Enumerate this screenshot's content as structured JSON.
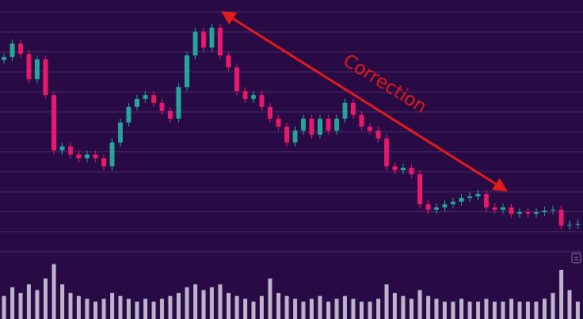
{
  "chart_data": {
    "type": "candlestick",
    "annotation": "Correction",
    "up_color": "#26a69a",
    "down_color": "#e8196b",
    "volume_color": "#d9d2e6",
    "grid": true,
    "ylim": [
      0,
      12.6
    ],
    "yticks": [
      0,
      1,
      2,
      3,
      4,
      5,
      6,
      7,
      8,
      9,
      10,
      11,
      12
    ],
    "volume_ylim": [
      0,
      100
    ],
    "open": [
      9.6,
      9.75,
      10.42,
      9.9,
      8.64,
      9.63,
      7.84,
      5.07,
      5.27,
      4.87,
      4.68,
      4.87,
      4.68,
      4.28,
      5.47,
      6.46,
      7.25,
      7.65,
      7.84,
      7.45,
      7.05,
      6.66,
      8.24,
      9.83,
      11.01,
      10.22,
      11.21,
      9.83,
      9.23,
      8.04,
      7.65,
      7.84,
      7.25,
      6.66,
      6.26,
      5.47,
      6.06,
      6.66,
      5.86,
      6.66,
      6.06,
      6.66,
      7.45,
      6.85,
      6.26,
      6.06,
      5.67,
      4.28,
      4.08,
      4.2,
      3.88,
      2.38,
      2.1,
      2.22,
      2.38,
      2.5,
      2.69,
      2.77,
      2.89,
      2.22,
      2.1,
      2.22,
      1.9,
      1.98,
      1.9,
      1.98,
      2.06,
      2.1,
      1.31,
      1.35
    ],
    "high": [
      9.95,
      10.62,
      10.62,
      10.1,
      9.83,
      9.83,
      8.04,
      5.47,
      5.47,
      5.07,
      5.07,
      5.07,
      4.88,
      5.67,
      6.66,
      7.45,
      7.85,
      8.04,
      8.04,
      7.65,
      7.25,
      8.44,
      10.03,
      11.21,
      11.21,
      11.41,
      11.41,
      10.03,
      9.43,
      8.24,
      8.04,
      8.04,
      7.45,
      6.86,
      6.46,
      6.26,
      6.86,
      6.86,
      6.86,
      6.86,
      6.86,
      7.65,
      7.65,
      7.05,
      6.46,
      6.26,
      5.87,
      4.48,
      4.4,
      4.4,
      4.08,
      2.58,
      2.42,
      2.58,
      2.7,
      2.89,
      2.97,
      3.09,
      3.09,
      2.42,
      2.42,
      2.42,
      2.18,
      2.18,
      2.18,
      2.26,
      2.3,
      2.3,
      1.55,
      1.59
    ],
    "low": [
      9.4,
      9.55,
      9.7,
      8.44,
      8.44,
      7.64,
      4.87,
      4.87,
      4.67,
      4.48,
      4.48,
      4.48,
      4.08,
      4.08,
      5.27,
      6.26,
      7.05,
      7.45,
      7.25,
      6.85,
      6.46,
      6.46,
      8.04,
      9.63,
      10.02,
      10.02,
      9.63,
      9.03,
      7.84,
      7.45,
      7.45,
      7.05,
      6.46,
      6.06,
      5.27,
      5.27,
      5.86,
      5.66,
      5.66,
      5.86,
      5.86,
      6.46,
      6.65,
      6.06,
      5.86,
      5.47,
      4.08,
      3.88,
      3.88,
      3.68,
      2.18,
      1.9,
      1.9,
      2.02,
      2.18,
      2.3,
      2.49,
      2.57,
      2.02,
      1.9,
      1.9,
      1.7,
      1.7,
      1.7,
      1.7,
      1.78,
      1.86,
      1.11,
      1.11,
      1.15
    ],
    "close": [
      9.75,
      10.42,
      9.9,
      8.64,
      9.63,
      7.84,
      5.07,
      5.27,
      4.87,
      4.68,
      4.87,
      4.68,
      4.28,
      5.47,
      6.46,
      7.25,
      7.65,
      7.84,
      7.45,
      7.05,
      6.66,
      8.24,
      9.83,
      11.01,
      10.22,
      11.21,
      9.83,
      9.23,
      8.04,
      7.65,
      7.84,
      7.25,
      6.66,
      6.26,
      5.47,
      6.06,
      6.66,
      5.86,
      6.66,
      6.06,
      6.66,
      7.45,
      6.85,
      6.26,
      6.06,
      5.67,
      4.28,
      4.08,
      4.2,
      3.88,
      2.38,
      2.1,
      2.22,
      2.38,
      2.5,
      2.69,
      2.77,
      2.89,
      2.22,
      2.1,
      2.22,
      1.9,
      1.98,
      1.9,
      1.98,
      2.06,
      2.1,
      1.31,
      1.35,
      1.39
    ],
    "volume": [
      40,
      55,
      45,
      60,
      50,
      70,
      95,
      60,
      45,
      40,
      35,
      30,
      35,
      45,
      40,
      35,
      30,
      35,
      30,
      35,
      40,
      45,
      55,
      60,
      50,
      55,
      60,
      45,
      40,
      35,
      30,
      40,
      70,
      45,
      40,
      35,
      30,
      35,
      40,
      30,
      35,
      40,
      35,
      30,
      30,
      35,
      60,
      45,
      40,
      35,
      50,
      40,
      35,
      30,
      30,
      35,
      30,
      30,
      35,
      30,
      30,
      35,
      30,
      30,
      30,
      35,
      45,
      85,
      50,
      30
    ]
  }
}
